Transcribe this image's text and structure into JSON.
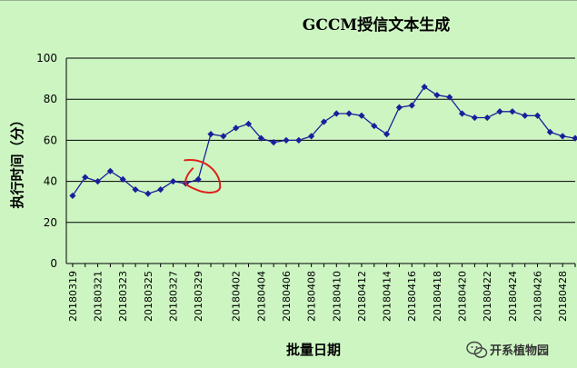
{
  "chart_data": {
    "type": "line",
    "title": "GCCM授信文本生成",
    "xlabel": "批量日期",
    "ylabel": "执行时间（分）",
    "ylim": [
      0,
      100
    ],
    "yticks": [
      0,
      20,
      40,
      60,
      80,
      100
    ],
    "grid": true,
    "legend": "none",
    "line_color": "#1a1f9a",
    "x": [
      "20180319",
      "20180320",
      "20180321",
      "20180322",
      "20180323",
      "20180324",
      "20180325",
      "20180326",
      "20180327",
      "20180328",
      "20180329",
      "20180330",
      "20180401",
      "20180402",
      "20180403",
      "20180404",
      "20180405",
      "20180406",
      "20180407",
      "20180408",
      "20180409",
      "20180410",
      "20180411",
      "20180412",
      "20180413",
      "20180414",
      "20180415",
      "20180416",
      "20180417",
      "20180418",
      "20180419",
      "20180420",
      "20180421",
      "20180422",
      "20180423",
      "20180424",
      "20180425",
      "20180426",
      "20180427",
      "20180428",
      "20180429"
    ],
    "xticks_shown": [
      "20180319",
      "20180321",
      "20180323",
      "20180325",
      "20180327",
      "20180329",
      "20180402",
      "20180404",
      "20180406",
      "20180408",
      "20180410",
      "20180412",
      "20180414",
      "20180416",
      "20180418",
      "20180420",
      "20180422",
      "20180424",
      "20180426",
      "20180428"
    ],
    "values": [
      33,
      42,
      40,
      45,
      41,
      36,
      34,
      36,
      40,
      39,
      41,
      63,
      62,
      66,
      68,
      61,
      59,
      60,
      60,
      62,
      69,
      73,
      73,
      72,
      67,
      63,
      76,
      77,
      86,
      82,
      81,
      73,
      71,
      71,
      74,
      74,
      72,
      72,
      64,
      62,
      61
    ],
    "annotation": {
      "shape": "hand-drawn circle",
      "color": "#e0201a",
      "around_x": "20180329"
    }
  },
  "watermark": {
    "text": "开系植物园",
    "icon": "wechat-icon"
  }
}
